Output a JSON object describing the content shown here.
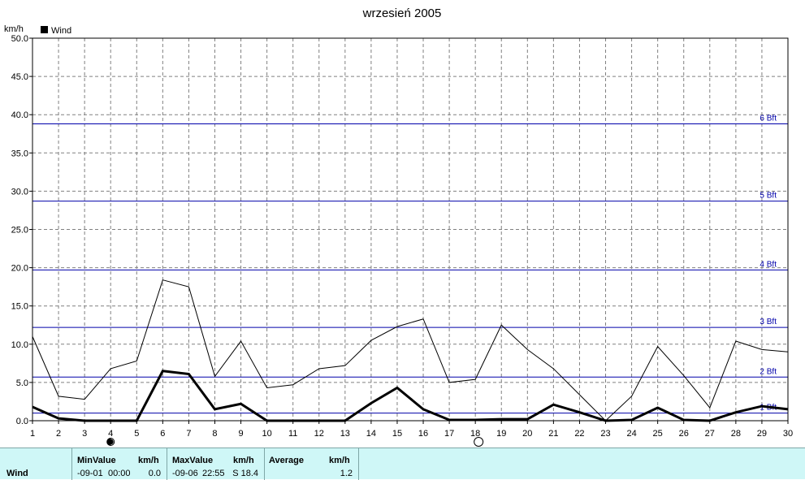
{
  "chart_data": {
    "type": "line",
    "title": "wrzesień 2005",
    "ylabel": "km/h",
    "xlabel": "",
    "ylim": [
      0,
      50
    ],
    "xlim": [
      1,
      30
    ],
    "y_ticks": [
      "0.0",
      "5.0",
      "10.0",
      "15.0",
      "20.0",
      "25.0",
      "30.0",
      "35.0",
      "40.0",
      "45.0",
      "50.0"
    ],
    "x_ticks": [
      "1",
      "2",
      "3",
      "4",
      "5",
      "6",
      "7",
      "8",
      "9",
      "10",
      "11",
      "12",
      "13",
      "14",
      "15",
      "16",
      "17",
      "18",
      "19",
      "20",
      "21",
      "22",
      "23",
      "24",
      "25",
      "26",
      "27",
      "28",
      "29",
      "30"
    ],
    "grid": true,
    "legend": {
      "position": "top-left",
      "entries": [
        "Wind"
      ]
    },
    "x": [
      1,
      2,
      3,
      4,
      5,
      6,
      7,
      8,
      9,
      10,
      11,
      12,
      13,
      14,
      15,
      16,
      17,
      18,
      19,
      20,
      21,
      22,
      23,
      24,
      25,
      26,
      27,
      28,
      29,
      30
    ],
    "series": [
      {
        "name": "Wind",
        "style": "thick",
        "values": [
          1.8,
          0.3,
          0.0,
          0.0,
          0.0,
          6.5,
          6.1,
          1.5,
          2.2,
          0.0,
          0.0,
          0.0,
          0.0,
          2.3,
          4.3,
          1.5,
          0.1,
          0.1,
          0.2,
          0.2,
          2.1,
          1.1,
          0.0,
          0.1,
          1.7,
          0.1,
          0.0,
          1.1,
          1.9,
          1.5
        ]
      },
      {
        "style": "thin",
        "values": [
          11.0,
          3.2,
          2.8,
          6.8,
          7.8,
          18.4,
          17.5,
          5.8,
          10.4,
          4.3,
          4.7,
          6.8,
          7.2,
          10.5,
          12.3,
          13.3,
          5.0,
          5.4,
          12.5,
          9.3,
          6.8,
          3.4,
          0.0,
          3.2,
          9.7,
          5.9,
          1.7,
          10.4,
          9.3,
          9.0
        ]
      }
    ],
    "reference_lines": [
      {
        "label": "1 Bft",
        "value": 1.0
      },
      {
        "label": "2 Bft",
        "value": 5.7
      },
      {
        "label": "3 Bft",
        "value": 12.2
      },
      {
        "label": "4 Bft",
        "value": 19.7
      },
      {
        "label": "5 Bft",
        "value": 28.7
      },
      {
        "label": "6 Bft",
        "value": 38.8
      }
    ],
    "moon_markers": [
      {
        "day": 4,
        "phase": "new-moon"
      },
      {
        "day": 18,
        "phase": "full-moon"
      }
    ],
    "colors": {
      "series": "#000000",
      "reference": "#0000aa",
      "grid": "#808080",
      "stats_bg": "#cff7f7"
    }
  },
  "stats": {
    "row_label": "Wind",
    "min_header": "MinValue",
    "min_unit": "km/h",
    "min_date": "-09-01",
    "min_time": "00:00",
    "min_value": "0.0",
    "max_header": "MaxValue",
    "max_unit": "km/h",
    "max_date": "-09-06",
    "max_time": "22:55",
    "max_value": "S 18.4",
    "avg_header": "Average",
    "avg_unit": "km/h",
    "avg_value": "1.2"
  }
}
